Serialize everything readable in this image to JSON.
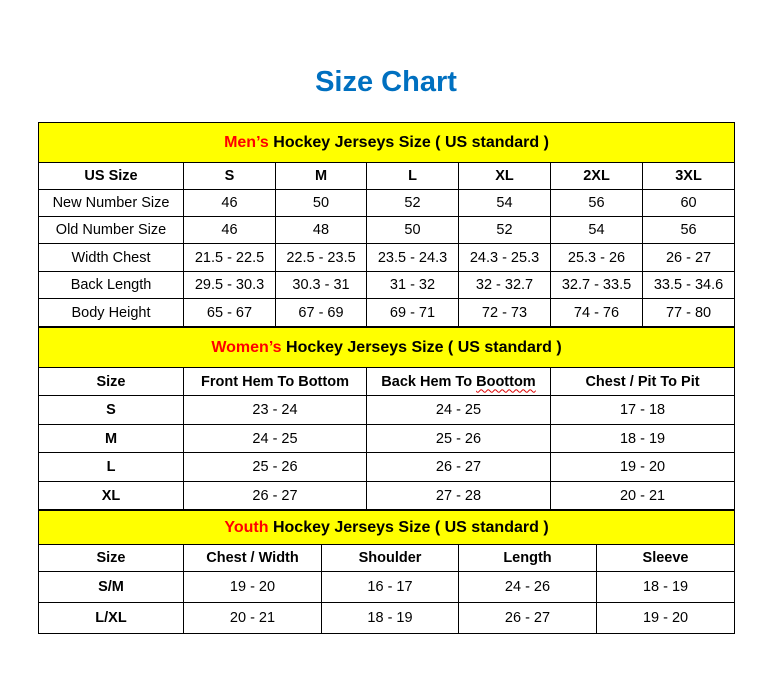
{
  "title": "Size Chart",
  "colors": {
    "title": "#0070c0",
    "section_bg": "#ffff00",
    "highlight": "#ff0000"
  },
  "men": {
    "highlight": "Men’s",
    "heading": " Hockey Jerseys Size ( US standard )",
    "columns": [
      "US Size",
      "S",
      "M",
      "L",
      "XL",
      "2XL",
      "3XL"
    ],
    "rows": [
      [
        "New Number Size",
        "46",
        "50",
        "52",
        "54",
        "56",
        "60"
      ],
      [
        "Old Number Size",
        "46",
        "48",
        "50",
        "52",
        "54",
        "56"
      ],
      [
        "Width Chest",
        "21.5 - 22.5",
        "22.5 - 23.5",
        "23.5 - 24.3",
        "24.3 - 25.3",
        "25.3 - 26",
        "26 - 27"
      ],
      [
        "Back Length",
        "29.5 - 30.3",
        "30.3 - 31",
        "31 - 32",
        "32 - 32.7",
        "32.7 - 33.5",
        "33.5 - 34.6"
      ],
      [
        "Body Height",
        "65 - 67",
        "67 - 69",
        "69 - 71",
        "72 - 73",
        "74 - 76",
        "77 - 80"
      ]
    ]
  },
  "women": {
    "highlight": "Women’s",
    "heading": " Hockey Jerseys Size ( US standard )",
    "columns": [
      "Size",
      "Front Hem To Bottom",
      "Back Hem To Boottom",
      "Chest / Pit To Pit"
    ],
    "rows": [
      [
        "S",
        "23 - 24",
        "24 - 25",
        "17 - 18"
      ],
      [
        "M",
        "24 - 25",
        "25 - 26",
        "18 - 19"
      ],
      [
        "L",
        "25 - 26",
        "26 - 27",
        "19 - 20"
      ],
      [
        "XL",
        "26 - 27",
        "27 - 28",
        "20 - 21"
      ]
    ]
  },
  "youth": {
    "highlight": "Youth",
    "heading": " Hockey Jerseys Size ( US standard )",
    "columns": [
      "Size",
      "Chest / Width",
      "Shoulder",
      "Length",
      "Sleeve"
    ],
    "rows": [
      [
        "S/M",
        "19 - 20",
        "16 - 17",
        "24 - 26",
        "18 - 19"
      ],
      [
        "L/XL",
        "20 - 21",
        "18 - 19",
        "26 - 27",
        "19 - 20"
      ]
    ]
  }
}
